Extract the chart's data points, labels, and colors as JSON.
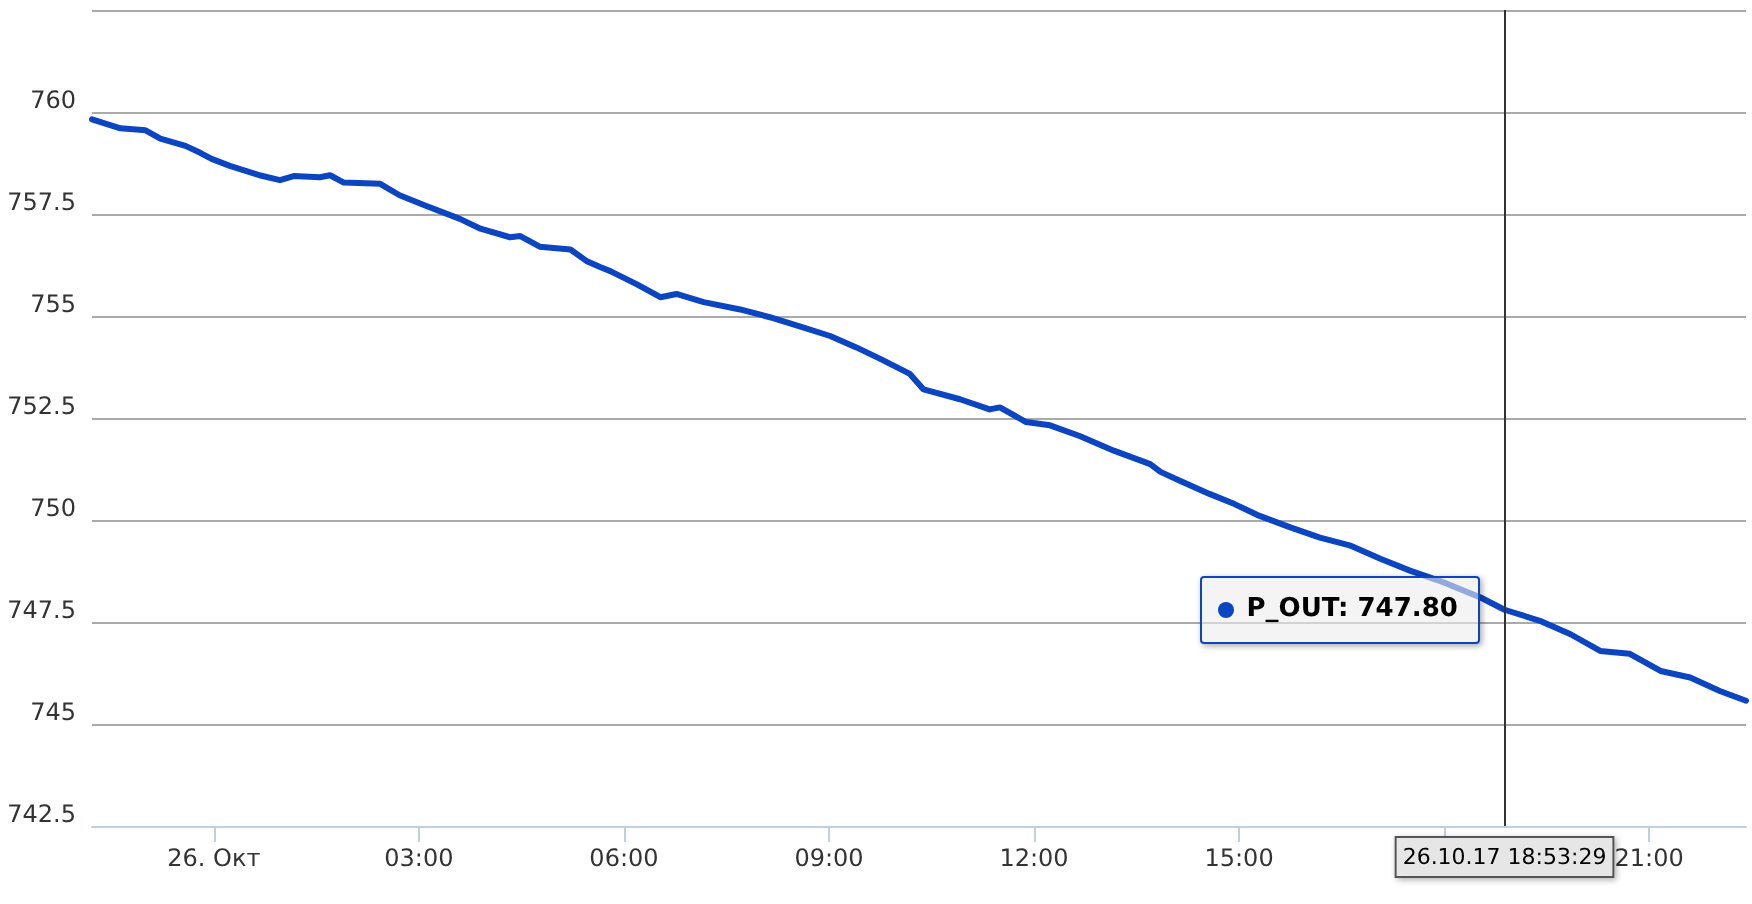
{
  "chart_data": {
    "type": "line",
    "x": [
      "--10-25T22:13",
      "--10-25T22:38",
      "--10-25T23:00",
      "--10-25T23:13",
      "--10-25T23:35",
      "--10-25T23:48",
      "--10-25T23:58",
      "--10-26T00:14",
      "--10-26T00:40",
      "--10-26T00:58",
      "--10-26T01:10",
      "--10-26T01:33",
      "--10-26T01:42",
      "--10-26T01:54",
      "--10-26T02:26",
      "--10-26T02:43",
      "--10-26T03:06",
      "--10-26T03:36",
      "--10-26T03:54",
      "--10-26T04:20",
      "--10-26T04:29",
      "--10-26T04:46",
      "--10-26T05:13",
      "--10-26T05:27",
      "--10-26T05:39",
      "--10-26T05:48",
      "--10-26T06:11",
      "--10-26T06:32",
      "--10-26T06:46",
      "--10-26T07:10",
      "--10-26T07:42",
      "--10-26T08:08",
      "--10-26T08:35",
      "--10-26T09:01",
      "--10-26T09:24",
      "--10-26T09:45",
      "--10-26T10:11",
      "--10-26T10:23",
      "--10-26T10:55",
      "--10-26T11:21",
      "--10-26T11:30",
      "--10-26T11:53",
      "--10-26T12:14",
      "--10-26T12:40",
      "--10-26T13:10",
      "--10-26T13:42",
      "--10-26T13:51",
      "--10-26T14:08",
      "--10-26T14:34",
      "--10-26T14:56",
      "--10-26T15:18",
      "--10-26T15:45",
      "--10-26T16:11",
      "--10-26T16:37",
      "--10-26T17:04",
      "--10-26T17:30",
      "--10-26T17:56",
      "--10-26T18:32",
      "--10-26T18:53",
      "--10-26T19:24",
      "--10-26T19:51",
      "--10-26T20:17",
      "--10-26T20:43",
      "--10-26T21:10",
      "--10-26T21:36",
      "--10-26T22:02",
      "--10-26T22:25"
    ],
    "series": [
      {
        "color": "#0b45c2",
        "values": [
          759.82,
          759.6,
          759.55,
          759.35,
          759.17,
          759.0,
          758.85,
          758.68,
          758.45,
          758.33,
          758.43,
          758.4,
          758.45,
          758.27,
          758.24,
          757.96,
          757.7,
          757.38,
          757.14,
          756.93,
          756.96,
          756.7,
          756.63,
          756.35,
          756.2,
          756.1,
          755.78,
          755.46,
          755.54,
          755.34,
          755.16,
          754.97,
          754.74,
          754.51,
          754.23,
          753.95,
          753.58,
          753.2,
          752.96,
          752.71,
          752.76,
          752.4,
          752.32,
          752.06,
          751.7,
          751.37,
          751.18,
          750.96,
          750.64,
          750.39,
          750.1,
          749.82,
          749.57,
          749.38,
          749.05,
          748.76,
          748.51,
          748.1,
          747.8,
          747.53,
          747.2,
          746.79,
          746.72,
          746.3,
          746.14,
          745.81,
          745.57
        ]
      }
    ],
    "xlim": [
      "--10-25T22:13",
      "--10-26T22:25"
    ],
    "xticks": [
      {
        "value": "--10-26",
        "label": "26. Окт"
      },
      {
        "value": "--10-26T03:00",
        "label": "03:00"
      },
      {
        "value": "--10-26T06:00",
        "label": "06:00"
      },
      {
        "value": "--10-26T09:00",
        "label": "09:00"
      },
      {
        "value": "--10-26T12:00",
        "label": "12:00"
      },
      {
        "value": "--10-26T15:00",
        "label": "15:00"
      },
      {
        "value": "--10-26T18:00",
        "label": null
      },
      {
        "value": "--10-26T21:00",
        "label": "21:00"
      }
    ],
    "ylim": [
      742.5,
      762.5
    ],
    "yticks": [
      742.5,
      745,
      747.5,
      750,
      752.5,
      755,
      757.5,
      760,
      {
        "value": 762.5,
        "label": null
      }
    ],
    "grid": "y",
    "marker": "none",
    "line_style": "solid",
    "ref_lines": [
      {
        "axis": "x",
        "value": "--10-26T18:53",
        "label": "26.10.17 18:53:29",
        "color": "#333333"
      }
    ],
    "annotations": [
      {
        "text": "P_OUT: 747.80",
        "x": "--10-26T18:53",
        "y": 747.8
      }
    ]
  }
}
